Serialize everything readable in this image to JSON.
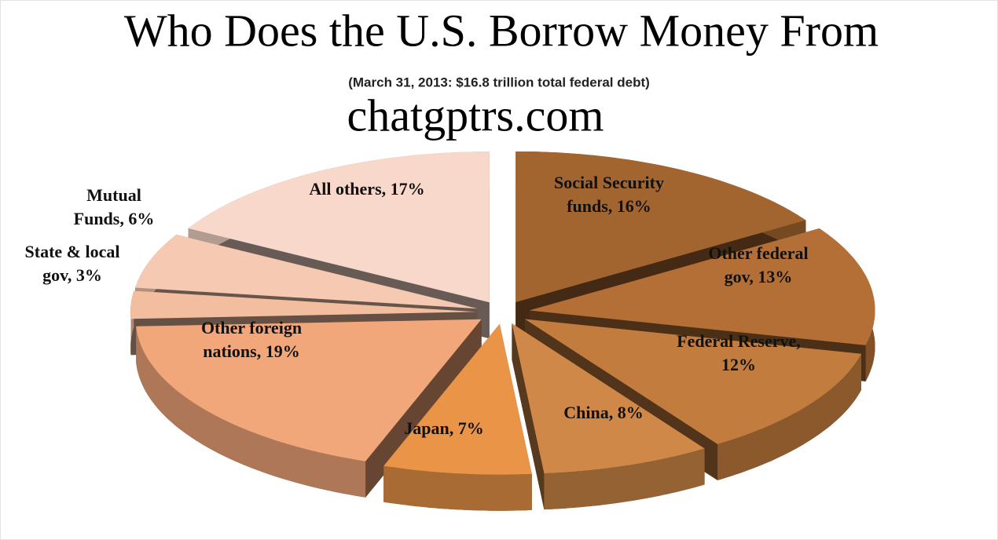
{
  "chart_data": {
    "type": "pie",
    "title": "Who Does the U.S. Borrow Money From",
    "subtitle": "(March 31, 2013: $16.8 trillion total federal debt)",
    "annotation": "chatgptrs.com",
    "labels": [
      [
        "Social Security",
        "funds, 16%"
      ],
      [
        "Other federal",
        "gov, 13%"
      ],
      [
        "Federal Reserve,",
        "12%"
      ],
      [
        "China, 8%"
      ],
      [
        "Japan, 7%"
      ],
      [
        "Other foreign",
        "nations, 19%"
      ],
      [
        "State & local",
        "gov, 3%"
      ],
      [
        "Mutual",
        "Funds, 6%"
      ],
      [
        "All others, 17%"
      ]
    ],
    "values": [
      16,
      13,
      12,
      8,
      7,
      19,
      3,
      6,
      17
    ],
    "colors": [
      "#a3652f",
      "#b36f35",
      "#c27c3e",
      "#cf8848",
      "#ea9448",
      "#f2a77a",
      "#f3bd9f",
      "#f5c9b2",
      "#f7d8ca"
    ]
  }
}
